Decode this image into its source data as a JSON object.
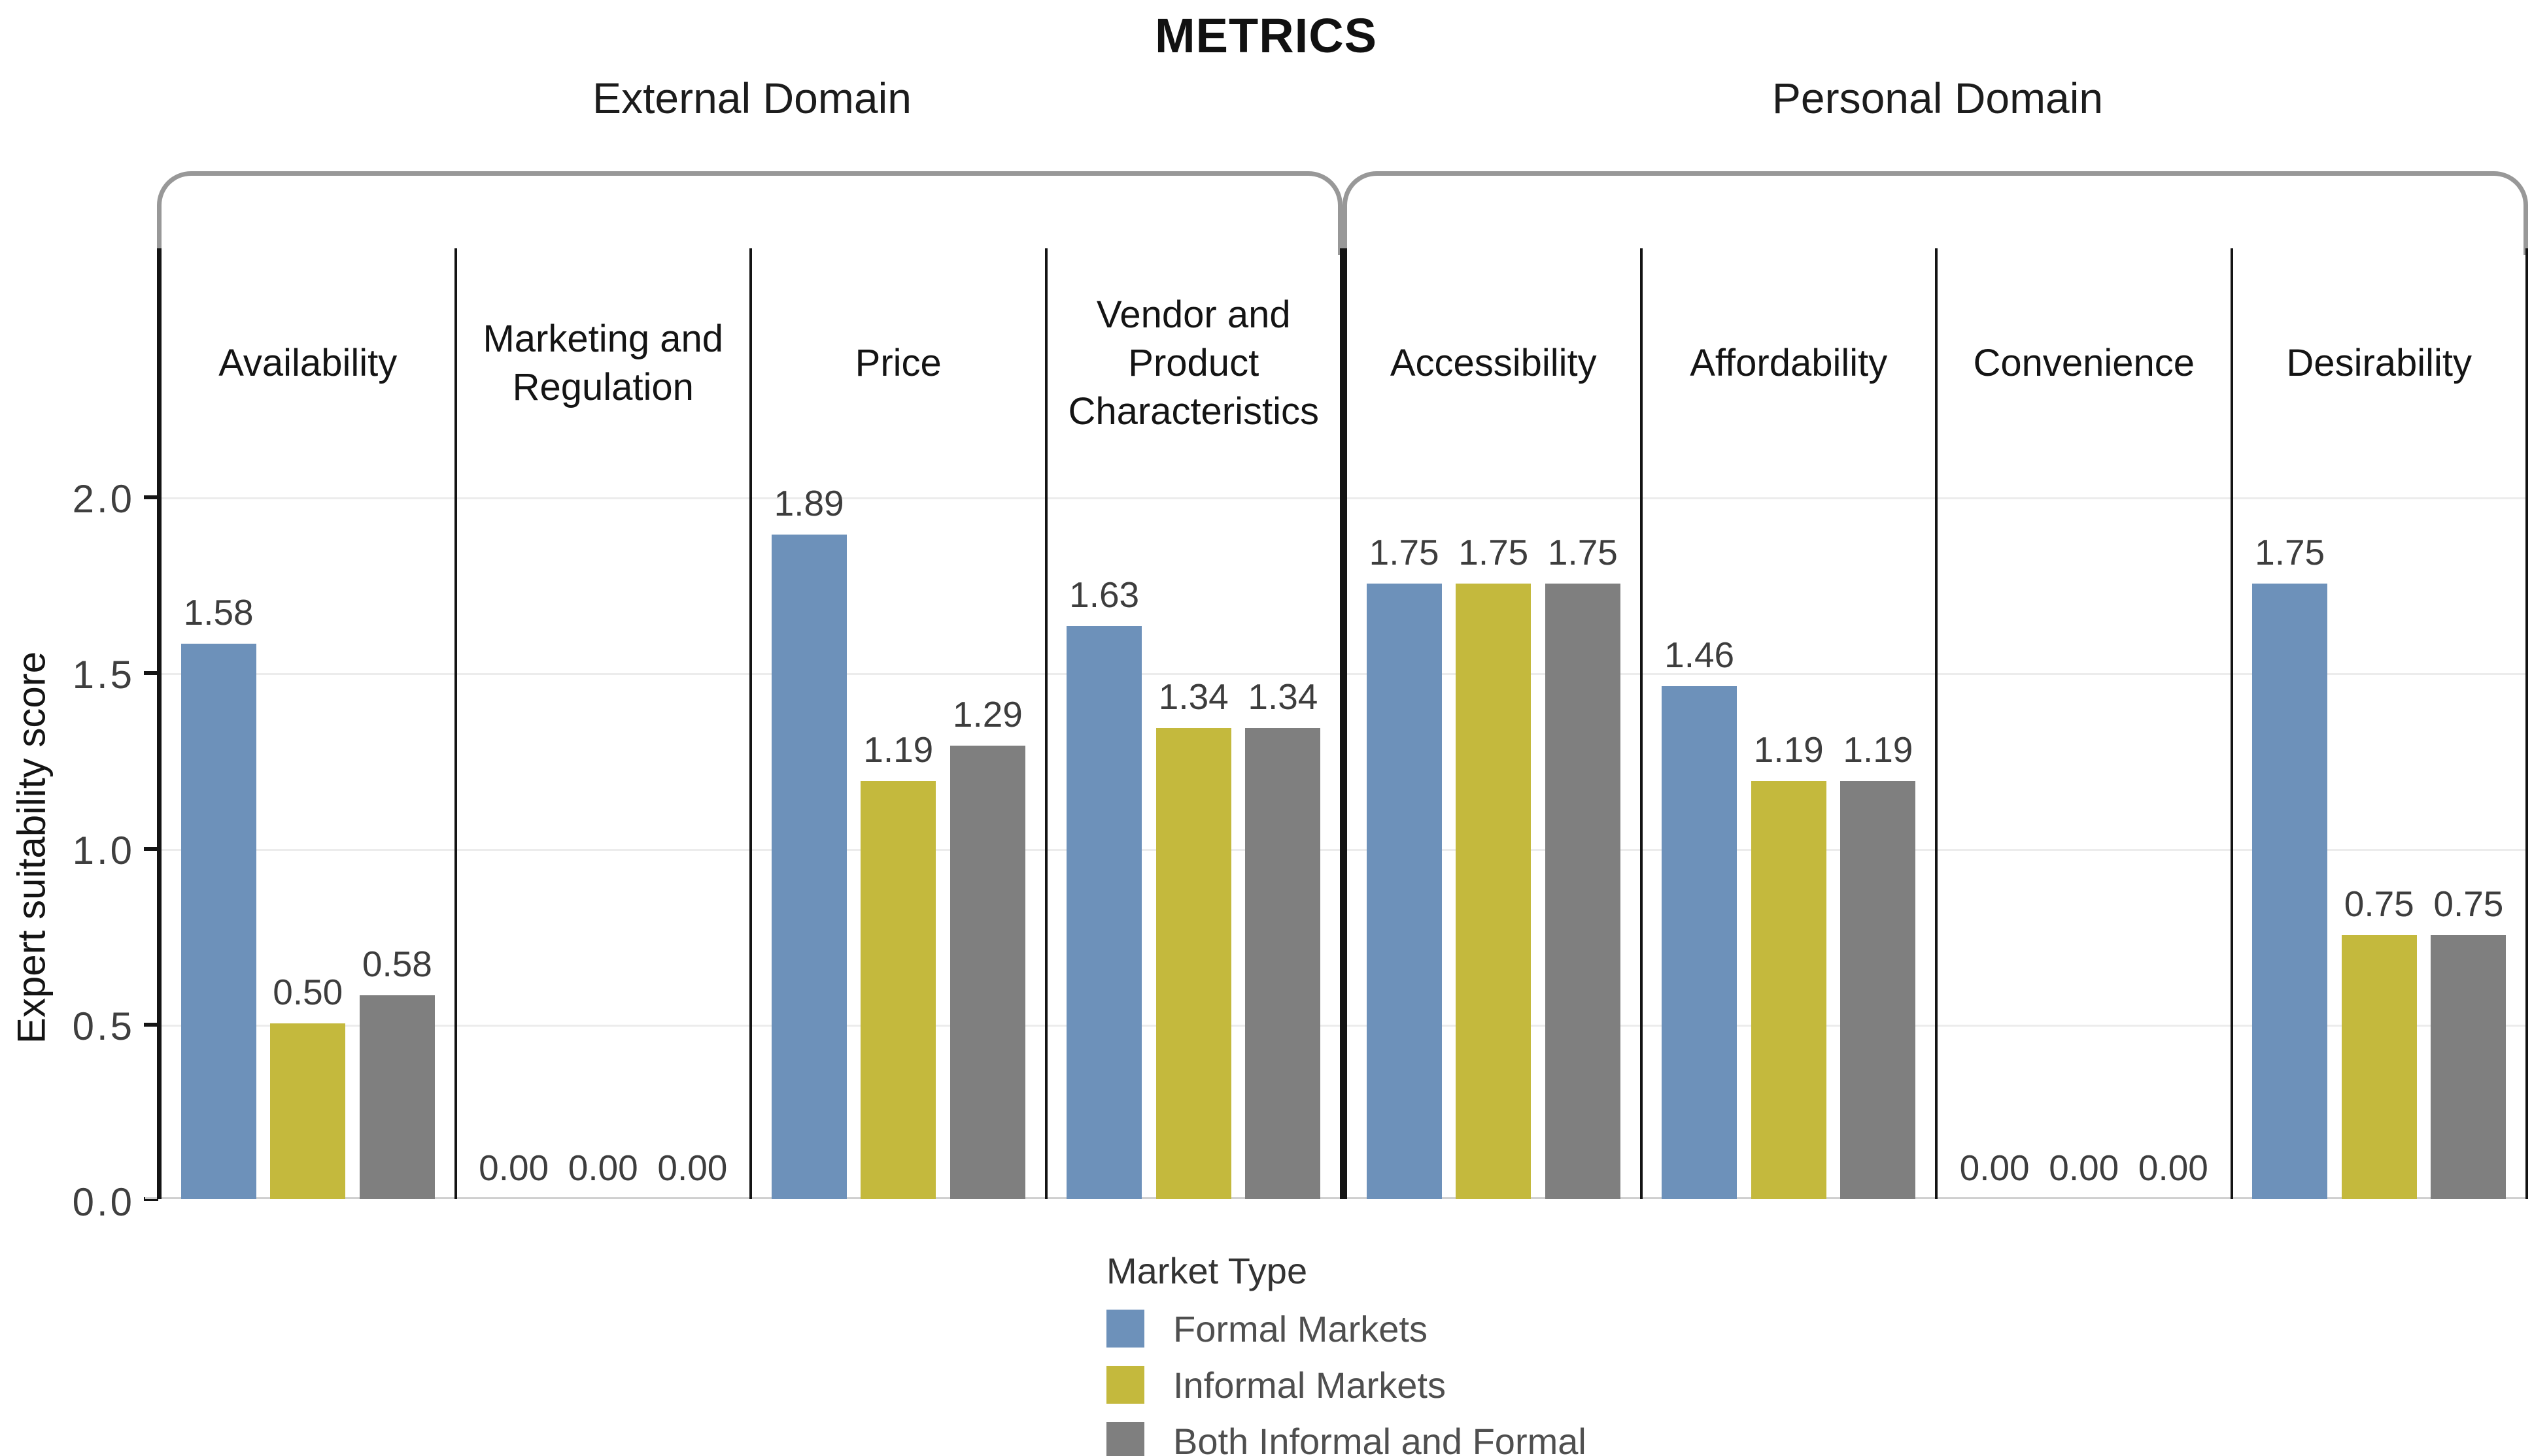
{
  "title": "METRICS",
  "y_axis": {
    "label": "Expert suitability score",
    "ticks": [
      "2.0",
      "1.5",
      "1.0",
      "0.5",
      "0.0"
    ]
  },
  "domains": [
    {
      "label": "External Domain",
      "panel_indexes": [
        0,
        1,
        2,
        3
      ]
    },
    {
      "label": "Personal Domain",
      "panel_indexes": [
        4,
        5,
        6,
        7
      ]
    }
  ],
  "chart_data": {
    "type": "bar",
    "title": "METRICS",
    "xlabel": "",
    "ylabel": "Expert suitability score",
    "ylim": [
      0,
      2.0
    ],
    "grid": true,
    "legend_position": "bottom",
    "categories": [
      "Availability",
      "Marketing and Regulation",
      "Price",
      "Vendor and Product Characteristics",
      "Accessibility",
      "Affordability",
      "Convenience",
      "Desirability"
    ],
    "series": [
      {
        "name": "Formal Markets",
        "color": "#6d91ba",
        "values": [
          1.58,
          0.0,
          1.89,
          1.63,
          1.75,
          1.46,
          0.0,
          1.75
        ]
      },
      {
        "name": "Informal Markets",
        "color": "#c4b93d",
        "values": [
          0.5,
          0.0,
          1.19,
          1.34,
          1.75,
          1.19,
          0.0,
          0.75
        ]
      },
      {
        "name": "Both Informal and Formal",
        "color": "#7f7f7f",
        "values": [
          0.58,
          0.0,
          1.29,
          1.34,
          1.75,
          1.19,
          0.0,
          0.75
        ]
      }
    ]
  },
  "legend": {
    "title": "Market Type",
    "items": [
      {
        "label": "Formal Markets",
        "color": "#6d91ba"
      },
      {
        "label": "Informal Markets",
        "color": "#c4b93d"
      },
      {
        "label": "Both Informal and Formal",
        "color": "#7f7f7f"
      }
    ]
  },
  "style": {
    "accent_blue": "#6d91ba",
    "accent_olive": "#c4b93d",
    "accent_gray": "#7f7f7f",
    "panel_border": "#141414",
    "group_outline": "#989898",
    "gridline": "#ececec"
  }
}
